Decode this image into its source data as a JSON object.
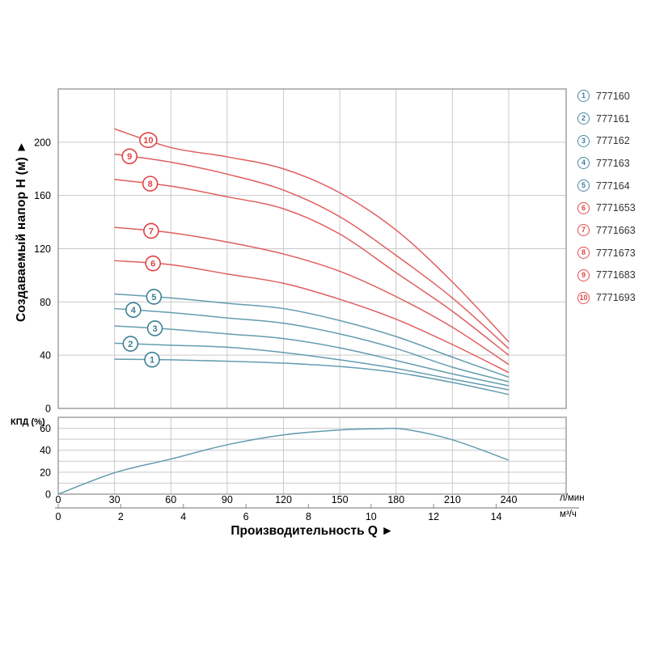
{
  "labels": {
    "y_axis_title": "Создаваемый напор H (м) ►",
    "x_axis_title": "Производительность Q ►",
    "efficiency_title": "КПД (%)",
    "x_unit_primary": "л/мин",
    "x_unit_secondary": "м³/ч"
  },
  "colors": {
    "blue_curve": "#649cb0",
    "blue_label": "#3e7f96",
    "red_curve": "#e05e5e",
    "red_label": "#e04343",
    "grid": "#c9c9c9",
    "border": "#9b9b9b",
    "axis2_line": "#b8b8b8",
    "tick_text": "#000000",
    "legend_text": "#333333"
  },
  "chart_data": [
    {
      "name": "head_vs_flow",
      "type": "line",
      "title": "",
      "ylabel": "Создаваемый напор H (м)",
      "xlabel": "Производительность Q",
      "ylim": [
        0,
        240
      ],
      "xlim": [
        0,
        270
      ],
      "yticks": [
        0,
        40,
        80,
        120,
        160,
        200
      ],
      "xticks": [
        0,
        30,
        60,
        90,
        120,
        150,
        180,
        210,
        240
      ],
      "x_unit": "л/мин",
      "x2_unit": "м³/ч",
      "x2ticks": [
        0,
        2,
        4,
        6,
        8,
        10,
        12,
        14
      ],
      "grid": true,
      "legend_position": "right",
      "series": [
        {
          "label": "1",
          "model": "777160",
          "color": "blue",
          "label_at_q": 50,
          "points": [
            [
              30,
              37
            ],
            [
              60,
              36.5
            ],
            [
              90,
              35.5
            ],
            [
              120,
              34
            ],
            [
              150,
              31.5
            ],
            [
              180,
              27
            ],
            [
              210,
              19.5
            ],
            [
              240,
              10.5
            ]
          ]
        },
        {
          "label": "2",
          "model": "777161",
          "color": "blue",
          "label_at_q": 38.5,
          "points": [
            [
              30,
              49
            ],
            [
              60,
              47.5
            ],
            [
              90,
              46
            ],
            [
              120,
              42
            ],
            [
              150,
              36.5
            ],
            [
              180,
              30
            ],
            [
              210,
              22
            ],
            [
              240,
              14
            ]
          ]
        },
        {
          "label": "3",
          "model": "777162",
          "color": "blue",
          "label_at_q": 51.5,
          "points": [
            [
              30,
              62
            ],
            [
              60,
              59.5
            ],
            [
              90,
              56
            ],
            [
              120,
              52.5
            ],
            [
              150,
              45.5
            ],
            [
              180,
              36
            ],
            [
              210,
              26
            ],
            [
              240,
              17
            ]
          ]
        },
        {
          "label": "4",
          "model": "777163",
          "color": "blue",
          "label_at_q": 40,
          "points": [
            [
              30,
              75
            ],
            [
              60,
              72
            ],
            [
              90,
              68
            ],
            [
              120,
              64
            ],
            [
              150,
              56
            ],
            [
              180,
              45
            ],
            [
              210,
              31
            ],
            [
              240,
              20
            ]
          ]
        },
        {
          "label": "5",
          "model": "777164",
          "color": "blue",
          "label_at_q": 51,
          "points": [
            [
              30,
              86
            ],
            [
              60,
              83
            ],
            [
              90,
              79
            ],
            [
              120,
              75
            ],
            [
              150,
              66
            ],
            [
              180,
              54
            ],
            [
              210,
              38.5
            ],
            [
              240,
              23.5
            ]
          ]
        },
        {
          "label": "6",
          "model": "7771653",
          "color": "red",
          "label_at_q": 50.5,
          "points": [
            [
              30,
              111
            ],
            [
              60,
              108
            ],
            [
              90,
              101
            ],
            [
              120,
              94
            ],
            [
              150,
              82
            ],
            [
              180,
              67
            ],
            [
              210,
              48
            ],
            [
              240,
              27
            ]
          ]
        },
        {
          "label": "7",
          "model": "7771663",
          "color": "red",
          "label_at_q": 49.5,
          "points": [
            [
              30,
              136
            ],
            [
              60,
              132
            ],
            [
              90,
              125
            ],
            [
              120,
              116
            ],
            [
              150,
              103
            ],
            [
              180,
              84
            ],
            [
              210,
              61
            ],
            [
              240,
              33
            ]
          ]
        },
        {
          "label": "8",
          "model": "7771673",
          "color": "red",
          "label_at_q": 49,
          "points": [
            [
              30,
              172
            ],
            [
              60,
              167
            ],
            [
              90,
              159
            ],
            [
              120,
              150
            ],
            [
              150,
              131
            ],
            [
              180,
              102
            ],
            [
              210,
              73
            ],
            [
              240,
              40
            ]
          ]
        },
        {
          "label": "9",
          "model": "7771683",
          "color": "red",
          "label_at_q": 38,
          "points": [
            [
              30,
              191
            ],
            [
              60,
              185
            ],
            [
              90,
              176
            ],
            [
              120,
              164
            ],
            [
              150,
              144
            ],
            [
              180,
              115
            ],
            [
              210,
              83
            ],
            [
              240,
              45
            ]
          ]
        },
        {
          "label": "10",
          "model": "7771693",
          "color": "red",
          "label_at_q": 48,
          "points": [
            [
              30,
              210
            ],
            [
              60,
              196
            ],
            [
              90,
              189
            ],
            [
              120,
              180
            ],
            [
              150,
              162
            ],
            [
              180,
              134
            ],
            [
              210,
              95
            ],
            [
              240,
              50
            ]
          ]
        }
      ]
    },
    {
      "name": "efficiency_vs_flow",
      "type": "line",
      "title": "",
      "ylabel": "КПД (%)",
      "xlabel": "Производительность Q",
      "ylim": [
        0,
        70
      ],
      "xlim": [
        0,
        270
      ],
      "yticks": [
        0,
        20,
        40,
        60
      ],
      "yticks_minor": [
        10,
        30,
        50
      ],
      "grid": true,
      "series": [
        {
          "label": "КПД",
          "color": "blue",
          "points": [
            [
              0,
              0
            ],
            [
              30,
              19.5
            ],
            [
              60,
              32
            ],
            [
              90,
              45
            ],
            [
              120,
              54
            ],
            [
              150,
              58.5
            ],
            [
              170,
              59.6
            ],
            [
              185,
              59
            ],
            [
              210,
              49.5
            ],
            [
              240,
              31
            ]
          ]
        }
      ]
    }
  ]
}
